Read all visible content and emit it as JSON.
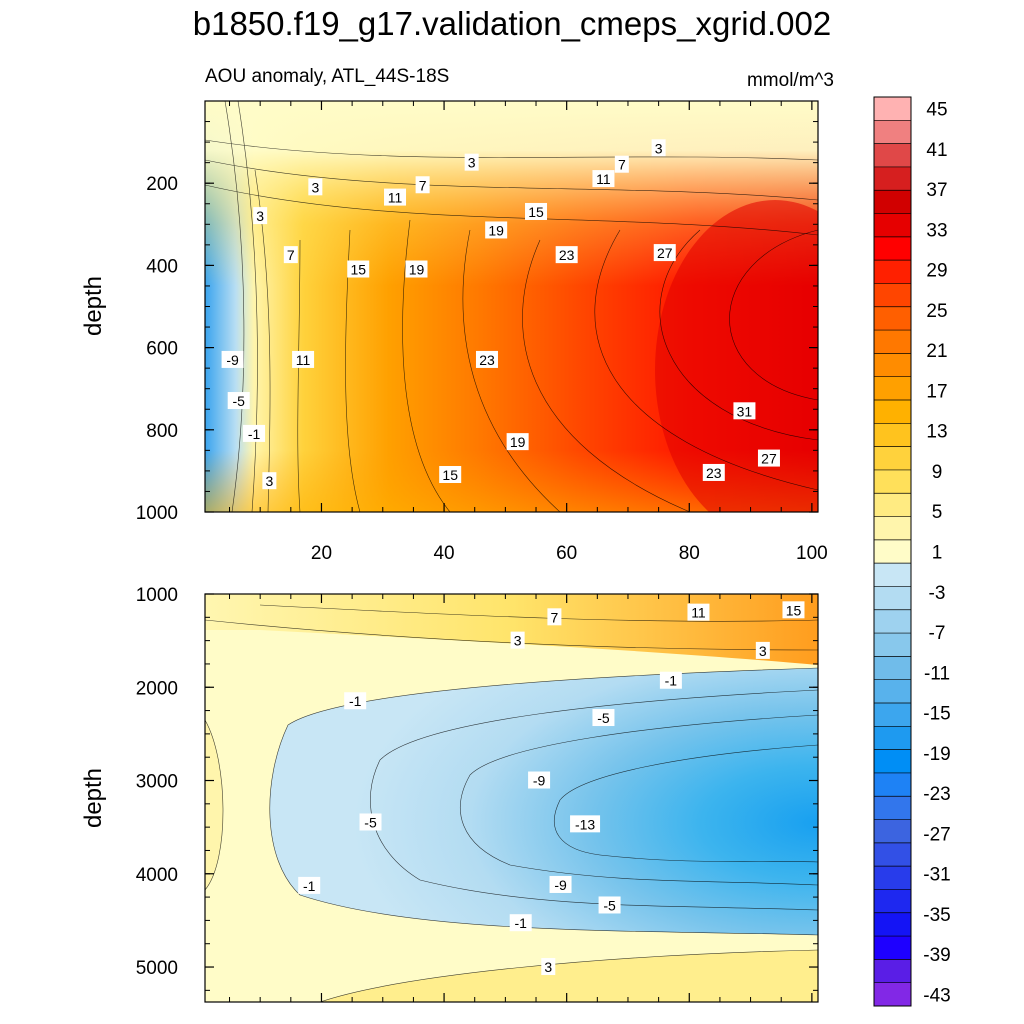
{
  "title": "b1850.f19_g17.validation_cmeps_xgrid.002",
  "chart_data": [
    {
      "type": "heatmap",
      "panel": "upper",
      "subtitle_left": "AOU anomaly, ATL_44S-18S",
      "subtitle_right": "mmol/m^3",
      "ylabel": "depth",
      "xlabel": "",
      "xlim": [
        1,
        101
      ],
      "ylim": [
        1000,
        0
      ],
      "xticks": [
        20,
        40,
        60,
        80,
        100
      ],
      "xtick_labels": [
        "20",
        "40",
        "60",
        "80",
        "100"
      ],
      "yticks": [
        200,
        400,
        600,
        800,
        1000
      ],
      "ytick_labels": [
        "200",
        "400",
        "600",
        "800",
        "1000"
      ],
      "contour_labels": [
        {
          "text": "3",
          "x": 19,
          "y": 210
        },
        {
          "text": "3",
          "x": 10,
          "y": 280
        },
        {
          "text": "3",
          "x": 11.5,
          "y": 925
        },
        {
          "text": "3",
          "x": 44.5,
          "y": 150
        },
        {
          "text": "3",
          "x": 75,
          "y": 115
        },
        {
          "text": "7",
          "x": 15,
          "y": 375
        },
        {
          "text": "7",
          "x": 36.5,
          "y": 205
        },
        {
          "text": "7",
          "x": 69,
          "y": 155
        },
        {
          "text": "11",
          "x": 32,
          "y": 235
        },
        {
          "text": "11",
          "x": 66,
          "y": 190
        },
        {
          "text": "11",
          "x": 17,
          "y": 630
        },
        {
          "text": "15",
          "x": 26,
          "y": 410
        },
        {
          "text": "15",
          "x": 55,
          "y": 270
        },
        {
          "text": "15",
          "x": 41,
          "y": 910
        },
        {
          "text": "19",
          "x": 35.5,
          "y": 410
        },
        {
          "text": "19",
          "x": 48.5,
          "y": 315
        },
        {
          "text": "19",
          "x": 52,
          "y": 830
        },
        {
          "text": "23",
          "x": 60,
          "y": 375
        },
        {
          "text": "23",
          "x": 47,
          "y": 630
        },
        {
          "text": "23",
          "x": 84,
          "y": 905
        },
        {
          "text": "27",
          "x": 76,
          "y": 370
        },
        {
          "text": "27",
          "x": 93,
          "y": 870
        },
        {
          "text": "31",
          "x": 89,
          "y": 755
        },
        {
          "text": "-9",
          "x": 5.5,
          "y": 630
        },
        {
          "text": "-5",
          "x": 6.5,
          "y": 730
        },
        {
          "text": "-1",
          "x": 9,
          "y": 810
        }
      ]
    },
    {
      "type": "heatmap",
      "panel": "lower",
      "ylabel": "depth",
      "xlabel": "",
      "xlim": [
        1,
        101
      ],
      "ylim": [
        5375,
        1000
      ],
      "xticks": [
        20,
        40,
        60,
        80,
        100
      ],
      "xtick_labels": [
        "",
        "",
        "",
        "",
        ""
      ],
      "yticks": [
        1000,
        2000,
        3000,
        4000,
        5000
      ],
      "ytick_labels": [
        "1000",
        "2000",
        "3000",
        "4000",
        "5000"
      ],
      "contour_labels": [
        {
          "text": "7",
          "x": 58,
          "y": 1250
        },
        {
          "text": "11",
          "x": 81.5,
          "y": 1200
        },
        {
          "text": "15",
          "x": 97,
          "y": 1175
        },
        {
          "text": "3",
          "x": 52,
          "y": 1500
        },
        {
          "text": "3",
          "x": 92,
          "y": 1610
        },
        {
          "text": "-1",
          "x": 77,
          "y": 1930
        },
        {
          "text": "-1",
          "x": 25.5,
          "y": 2150
        },
        {
          "text": "-5",
          "x": 66,
          "y": 2330
        },
        {
          "text": "-9",
          "x": 55.5,
          "y": 3000
        },
        {
          "text": "-13",
          "x": 63,
          "y": 3470
        },
        {
          "text": "-5",
          "x": 28,
          "y": 3450
        },
        {
          "text": "-9",
          "x": 59,
          "y": 4120
        },
        {
          "text": "-5",
          "x": 67,
          "y": 4340
        },
        {
          "text": "-1",
          "x": 18,
          "y": 4130
        },
        {
          "text": "-1",
          "x": 52.5,
          "y": 4530
        },
        {
          "text": "3",
          "x": 57,
          "y": 5000
        }
      ]
    }
  ],
  "colorbar": {
    "colors": [
      "#ffb2b2",
      "#f08080",
      "#e04848",
      "#d61f1f",
      "#d10000",
      "#e60000",
      "#ff0000",
      "#ff2000",
      "#ff4500",
      "#ff5f00",
      "#ff7800",
      "#ff8c00",
      "#ffa000",
      "#ffb100",
      "#ffc31e",
      "#ffd23c",
      "#ffe05a",
      "#ffeb82",
      "#fff5ac",
      "#fffcc8",
      "#c8e6f5",
      "#b3dcf2",
      "#9ed2ef",
      "#88c8ec",
      "#70bcea",
      "#58b2ec",
      "#3ca6ee",
      "#1e9af0",
      "#008ef5",
      "#1e82f5",
      "#3276ec",
      "#3c64e0",
      "#3250e6",
      "#283ceb",
      "#1e28f0",
      "#1414f5",
      "#1e00ff",
      "#5a1ee6",
      "#8228e6"
    ],
    "labels": [
      "45",
      "41",
      "37",
      "33",
      "29",
      "25",
      "21",
      "17",
      "13",
      "9",
      "5",
      "1",
      "-3",
      "-7",
      "-11",
      "-15",
      "-19",
      "-23",
      "-27",
      "-31",
      "-35",
      "-39",
      "-43"
    ]
  }
}
